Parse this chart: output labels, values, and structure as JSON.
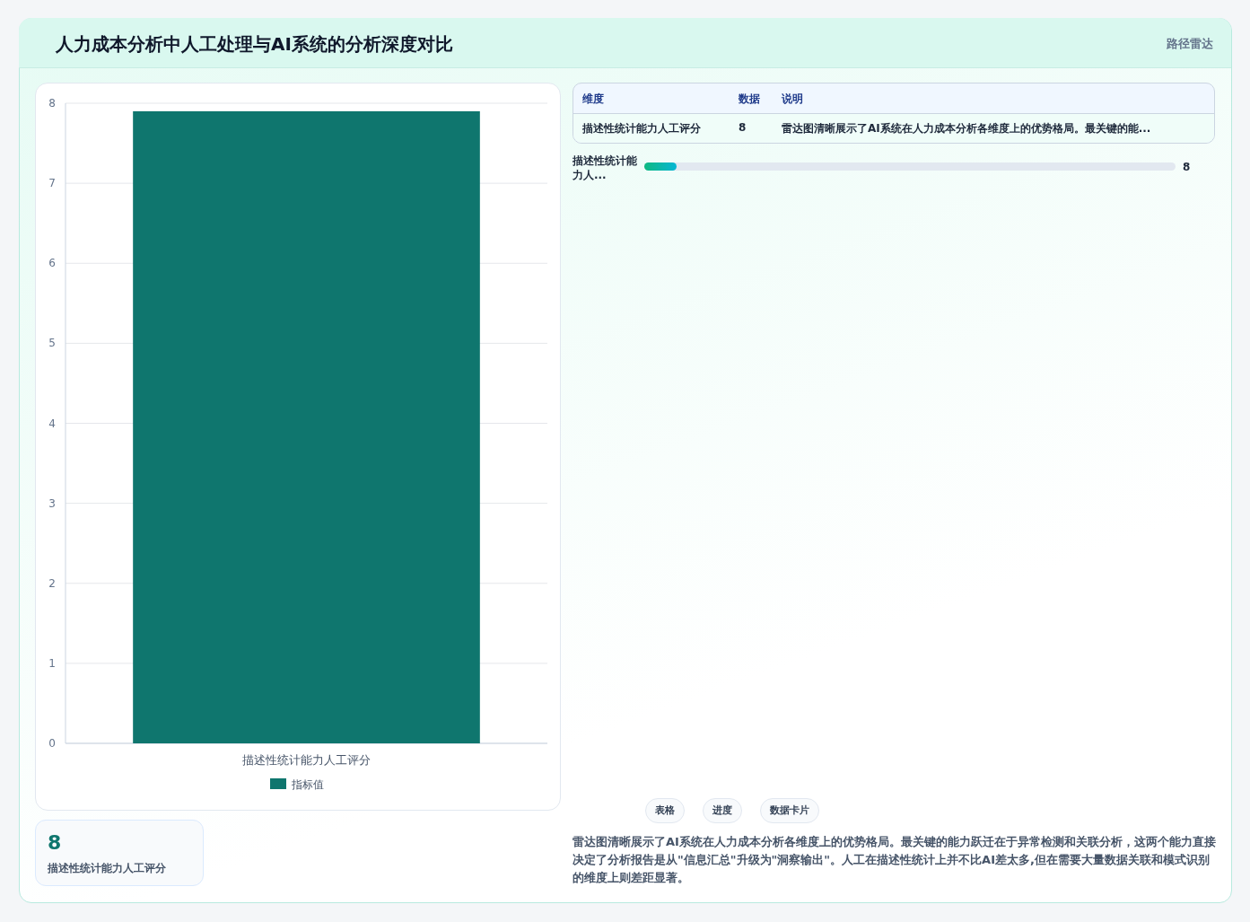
{
  "chart_data": [
    {
      "type": "bar",
      "title": "人力成本分析中人工处理与AI系统的分析深度对比",
      "categories": [
        "描述性统计能力人工评分"
      ],
      "series": [
        {
          "name": "指标值",
          "color": "#0f766e",
          "values": [
            7.9
          ]
        }
      ],
      "ylim": [
        0,
        8
      ],
      "yticks": [
        0,
        1,
        2,
        3,
        4,
        5,
        6,
        7,
        8
      ],
      "grid": "y",
      "legend": "bottom"
    },
    {
      "type": "other",
      "annotations": [
        "维度",
        "数据",
        "说明",
        "描述性统计能力人工评分",
        "8",
        "雷达图清晰展示了AI系统在人力成本分析各维度上的优势格局。最关键的能...",
        "描述性统计能力人...",
        "8",
        "8",
        "描述性统计能力人工评分",
        "表格",
        "进度",
        "数据卡片",
        "雷达图清晰展示了AI系统在人力成本分析各维度上的优势格局。最关键的能力跃迁在于异常检测和关联分析，这两个能力直接决定了分析报告是从\"信息汇总\"升级为\"洞察输出\"。人工在描述性统计上并不比AI差太多,但在需要大量数据关联和模式识别的维度上则差距显著。",
        "路径雷达"
      ]
    }
  ]
}
